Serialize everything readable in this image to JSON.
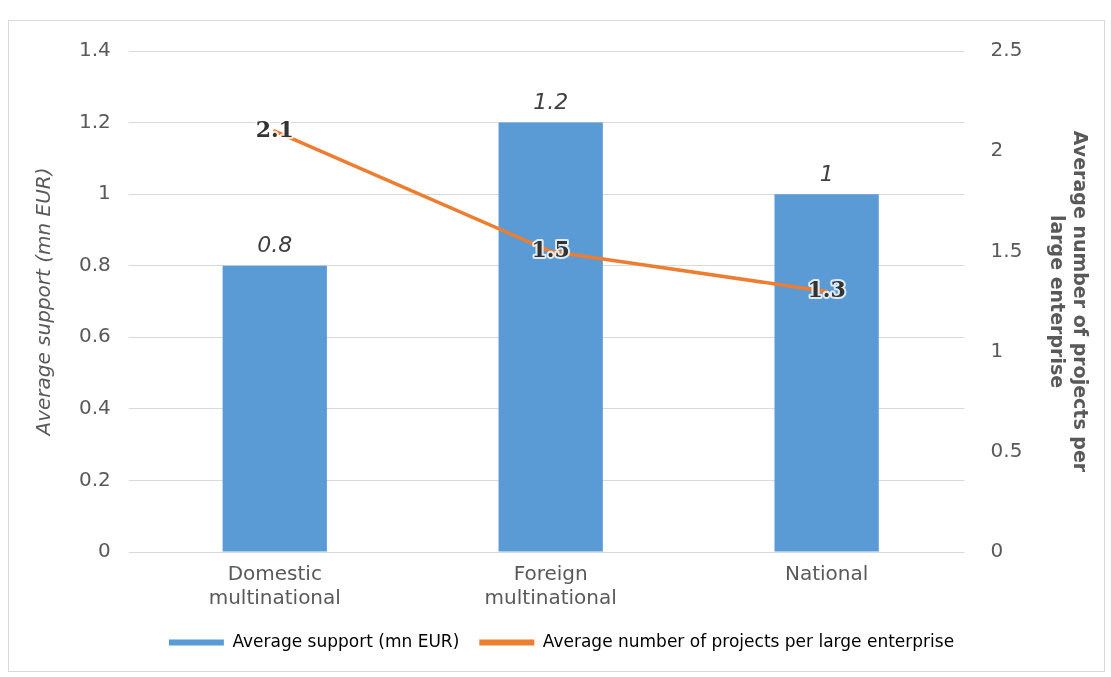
{
  "chart_data": {
    "type": "bar",
    "categories": [
      "Domestic multinational",
      "Foreign multinational",
      "National"
    ],
    "series": [
      {
        "name": "Average support (mn EUR)",
        "color": "#5b9bd5",
        "values": [
          0.8,
          1.2,
          1
        ]
      },
      {
        "name": "Average number of projects per large enterprise",
        "type": "line",
        "axis": "y2",
        "color": "#ed7d31",
        "values": [
          2.1,
          1.5,
          1.3
        ]
      }
    ],
    "ylabel": "Average support (mn EUR)",
    "y2label": "Average number of projects per large enterprise",
    "ylim": [
      0,
      1.4
    ],
    "yticks": [
      0,
      0.2,
      0.4,
      0.6,
      0.8,
      1,
      1.2,
      1.4
    ],
    "y2lim": [
      0,
      2.5
    ],
    "y2ticks": [
      0,
      0.5,
      1,
      1.5,
      2,
      2.5
    ],
    "grid": "y",
    "legend": "bottom",
    "data_labels": true,
    "marker": "none"
  }
}
